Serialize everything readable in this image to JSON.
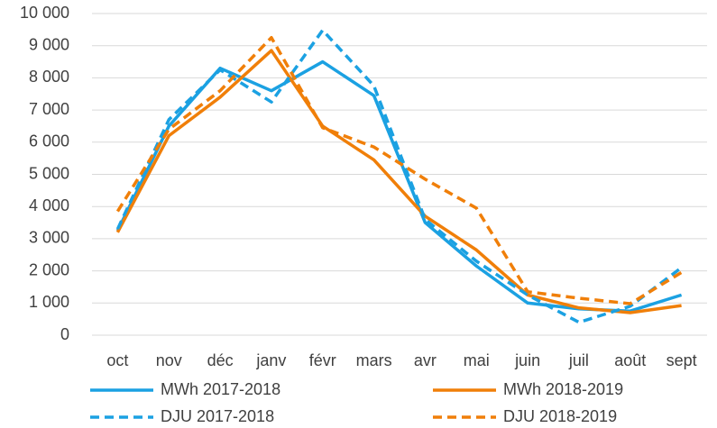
{
  "chart_data": {
    "type": "line",
    "categories": [
      "oct",
      "nov",
      "déc",
      "janv",
      "févr",
      "mars",
      "avr",
      "mai",
      "juin",
      "juil",
      "août",
      "sept"
    ],
    "series": [
      {
        "name": "MWh 2017-2018",
        "color": "#1ba1e2",
        "dash": false,
        "values": [
          3250,
          6500,
          8300,
          7600,
          8500,
          7450,
          3500,
          2150,
          1000,
          820,
          750,
          1250
        ]
      },
      {
        "name": "MWh 2018-2019",
        "color": "#f07f09",
        "dash": false,
        "values": [
          3200,
          6200,
          7400,
          8850,
          6500,
          5450,
          3700,
          2650,
          1250,
          850,
          700,
          920
        ]
      },
      {
        "name": "DJU 2017-2018",
        "color": "#1ba1e2",
        "dash": true,
        "values": [
          3300,
          6700,
          8250,
          7250,
          9480,
          7750,
          3600,
          2300,
          1250,
          400,
          900,
          2100
        ]
      },
      {
        "name": "DJU 2018-2019",
        "color": "#f07f09",
        "dash": true,
        "values": [
          3850,
          6400,
          7600,
          9250,
          6450,
          5850,
          4850,
          3950,
          1350,
          1150,
          980,
          1950
        ]
      }
    ],
    "ylim": [
      0,
      10000
    ],
    "yticks": [
      0,
      {
        "value": 1000,
        "label": "1 000"
      },
      {
        "value": 2000,
        "label": "2 000"
      },
      {
        "value": 3000,
        "label": "3 000"
      },
      {
        "value": 4000,
        "label": "4 000"
      },
      {
        "value": 5000,
        "label": "5 000"
      },
      {
        "value": 6000,
        "label": "6 000"
      },
      {
        "value": 7000,
        "label": "7 000"
      },
      {
        "value": 8000,
        "label": "8 000"
      },
      {
        "value": 9000,
        "label": "9 000"
      },
      {
        "value": 10000,
        "label": "10 000"
      }
    ],
    "grid": true,
    "legend": "bottom"
  }
}
